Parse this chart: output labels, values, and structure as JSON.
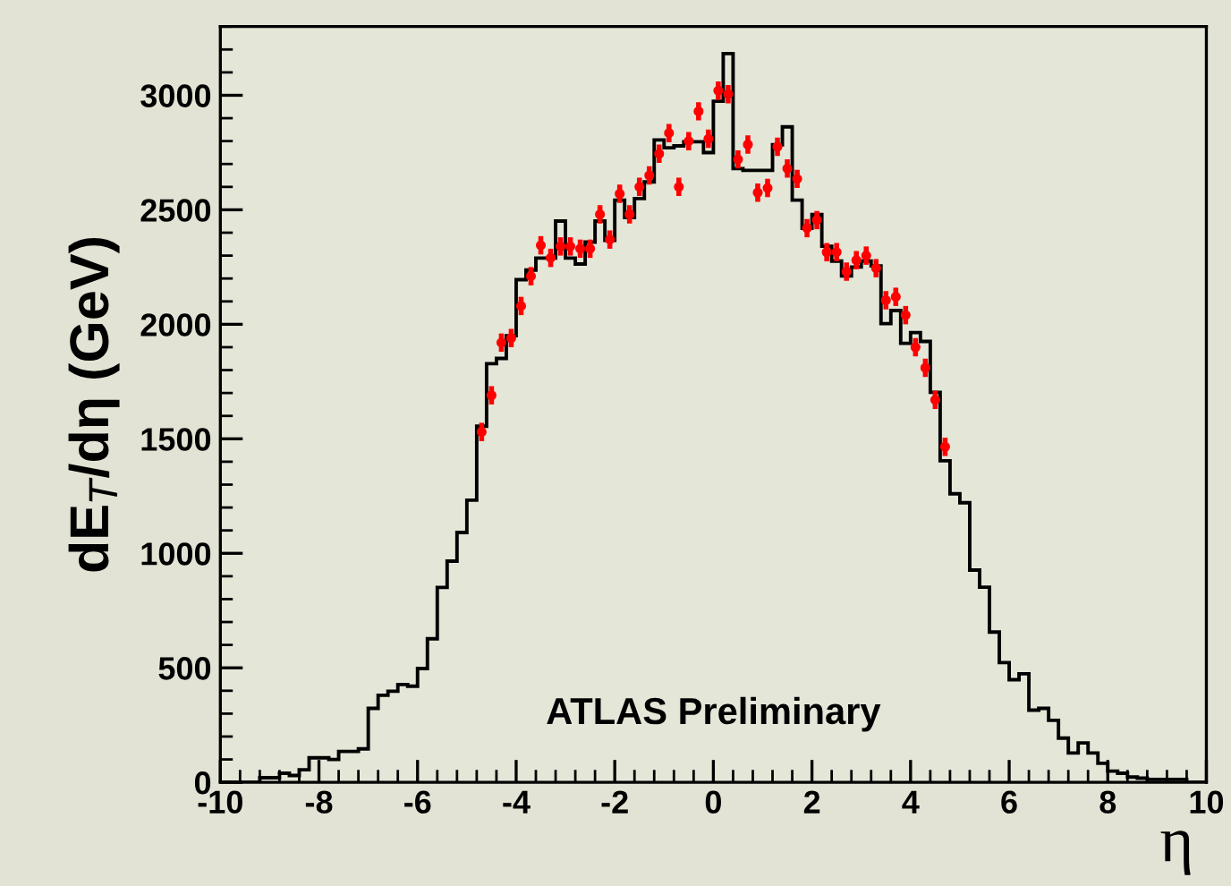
{
  "chart_data": {
    "type": "histogram",
    "ylabel": "dE$_{T}$/dη (GeV)",
    "xlabel": "η",
    "annotations": [
      "ATLAS Preliminary"
    ],
    "bins": [
      -10.0,
      -9.8,
      -9.6,
      -9.4,
      -9.2,
      -9.0,
      -8.8,
      -8.6,
      -8.4,
      -8.2,
      -8.0,
      -7.8,
      -7.6,
      -7.4,
      -7.2,
      -7.0,
      -6.8,
      -6.6,
      -6.4,
      -6.2,
      -6.0,
      -5.8,
      -5.6,
      -5.4,
      -5.2,
      -5.0,
      -4.8,
      -4.6,
      -4.4,
      -4.2,
      -4.0,
      -3.8,
      -3.6,
      -3.4,
      -3.2,
      -3.0,
      -2.8,
      -2.6,
      -2.4,
      -2.2,
      -2.0,
      -1.8,
      -1.6,
      -1.4,
      -1.2,
      -1.0,
      -0.8,
      -0.6,
      -0.4,
      -0.2,
      0.0,
      0.2,
      0.4,
      0.6,
      0.8,
      1.0,
      1.2,
      1.4,
      1.6,
      1.8,
      2.0,
      2.2,
      2.4,
      2.6,
      2.8,
      3.0,
      3.2,
      3.4,
      3.6,
      3.8,
      4.0,
      4.2,
      4.4,
      4.6,
      4.8,
      5.0,
      5.2,
      5.4,
      5.6,
      5.8,
      6.0,
      6.2,
      6.4,
      6.6,
      6.8,
      7.0,
      7.2,
      7.4,
      7.6,
      7.8,
      8.0,
      8.2,
      8.4,
      8.6,
      8.8,
      9.0,
      9.2,
      9.4,
      9.6,
      9.8,
      10.0
    ],
    "values": [
      0,
      0,
      0,
      0,
      20,
      20,
      40,
      30,
      55,
      107,
      107,
      100,
      135,
      135,
      146,
      323,
      380,
      398,
      427,
      420,
      497,
      627,
      851,
      966,
      1091,
      1232,
      1555,
      1828,
      1851,
      1950,
      2195,
      2237,
      2289,
      2289,
      2451,
      2289,
      2263,
      2359,
      2451,
      2367,
      2542,
      2466,
      2549,
      2622,
      2805,
      2771,
      2779,
      2797,
      2797,
      2750,
      2974,
      3182,
      2680,
      2672,
      2672,
      2672,
      2784,
      2862,
      2542,
      2419,
      2479,
      2341,
      2276,
      2211,
      2250,
      2276,
      2255,
      2003,
      2060,
      1917,
      1964,
      1925,
      1703,
      1404,
      1260,
      1221,
      927,
      852,
      656,
      523,
      448,
      474,
      315,
      323,
      271,
      193,
      128,
      172,
      128,
      83,
      49,
      40,
      23,
      18,
      13,
      13,
      13,
      13,
      0,
      0
    ],
    "color": "#000000",
    "series": [
      {
        "type": "scatter",
        "color": "#ff0000",
        "marker": "circle",
        "x": [
          -4.7,
          -4.5,
          -4.3,
          -4.1,
          -3.9,
          -3.7,
          -3.5,
          -3.3,
          -3.1,
          -2.9,
          -2.7,
          -2.5,
          -2.3,
          -2.1,
          -1.9,
          -1.7,
          -1.5,
          -1.3,
          -1.1,
          -0.9,
          -0.7,
          -0.5,
          -0.3,
          -0.1,
          0.1,
          0.3,
          0.5,
          0.7,
          0.9,
          1.1,
          1.3,
          1.5,
          1.7,
          1.9,
          2.1,
          2.3,
          2.5,
          2.7,
          2.9,
          3.1,
          3.3,
          3.5,
          3.7,
          3.9,
          4.1,
          4.3,
          4.5,
          4.7
        ],
        "values": [
          1530,
          1690,
          1920,
          1940,
          2080,
          2210,
          2345,
          2290,
          2340,
          2340,
          2330,
          2330,
          2480,
          2370,
          2570,
          2480,
          2600,
          2650,
          2745,
          2835,
          2600,
          2800,
          2930,
          2810,
          3020,
          3005,
          2720,
          2785,
          2575,
          2595,
          2775,
          2680,
          2635,
          2420,
          2455,
          2315,
          2315,
          2230,
          2280,
          2300,
          2245,
          2105,
          2120,
          2040,
          1900,
          1810,
          1670,
          1465
        ],
        "errors": [
          40,
          40,
          40,
          40,
          40,
          40,
          40,
          40,
          40,
          40,
          40,
          40,
          40,
          40,
          40,
          40,
          40,
          40,
          40,
          40,
          40,
          40,
          40,
          40,
          40,
          40,
          40,
          40,
          40,
          40,
          40,
          40,
          40,
          40,
          40,
          40,
          40,
          40,
          40,
          40,
          40,
          40,
          40,
          40,
          40,
          40,
          40,
          40
        ],
        "xerrors": [
          0.08,
          0.08,
          0.08,
          0.08,
          0.08,
          0.08,
          0.08,
          0.08,
          0.08,
          0.08,
          0.08,
          0.08,
          0.08,
          0.08,
          0.08,
          0.08,
          0.08,
          0.08,
          0.08,
          0.08,
          0.08,
          0.08,
          0.08,
          0.08,
          0.08,
          0.08,
          0.08,
          0.08,
          0.08,
          0.08,
          0.08,
          0.08,
          0.08,
          0.08,
          0.08,
          0.08,
          0.08,
          0.08,
          0.08,
          0.08,
          0.08,
          0.08,
          0.08,
          0.08,
          0.08,
          0.08,
          0.08,
          0.08
        ]
      }
    ],
    "xlim": [
      -10,
      10
    ],
    "ylim": [
      0,
      3300
    ],
    "xticks": [
      -10,
      -8,
      -6,
      -4,
      -2,
      0,
      2,
      4,
      6,
      8,
      10
    ],
    "yticks": [
      0,
      500,
      1000,
      1500,
      2000,
      2500,
      3000
    ],
    "grid": false,
    "legend": false
  }
}
